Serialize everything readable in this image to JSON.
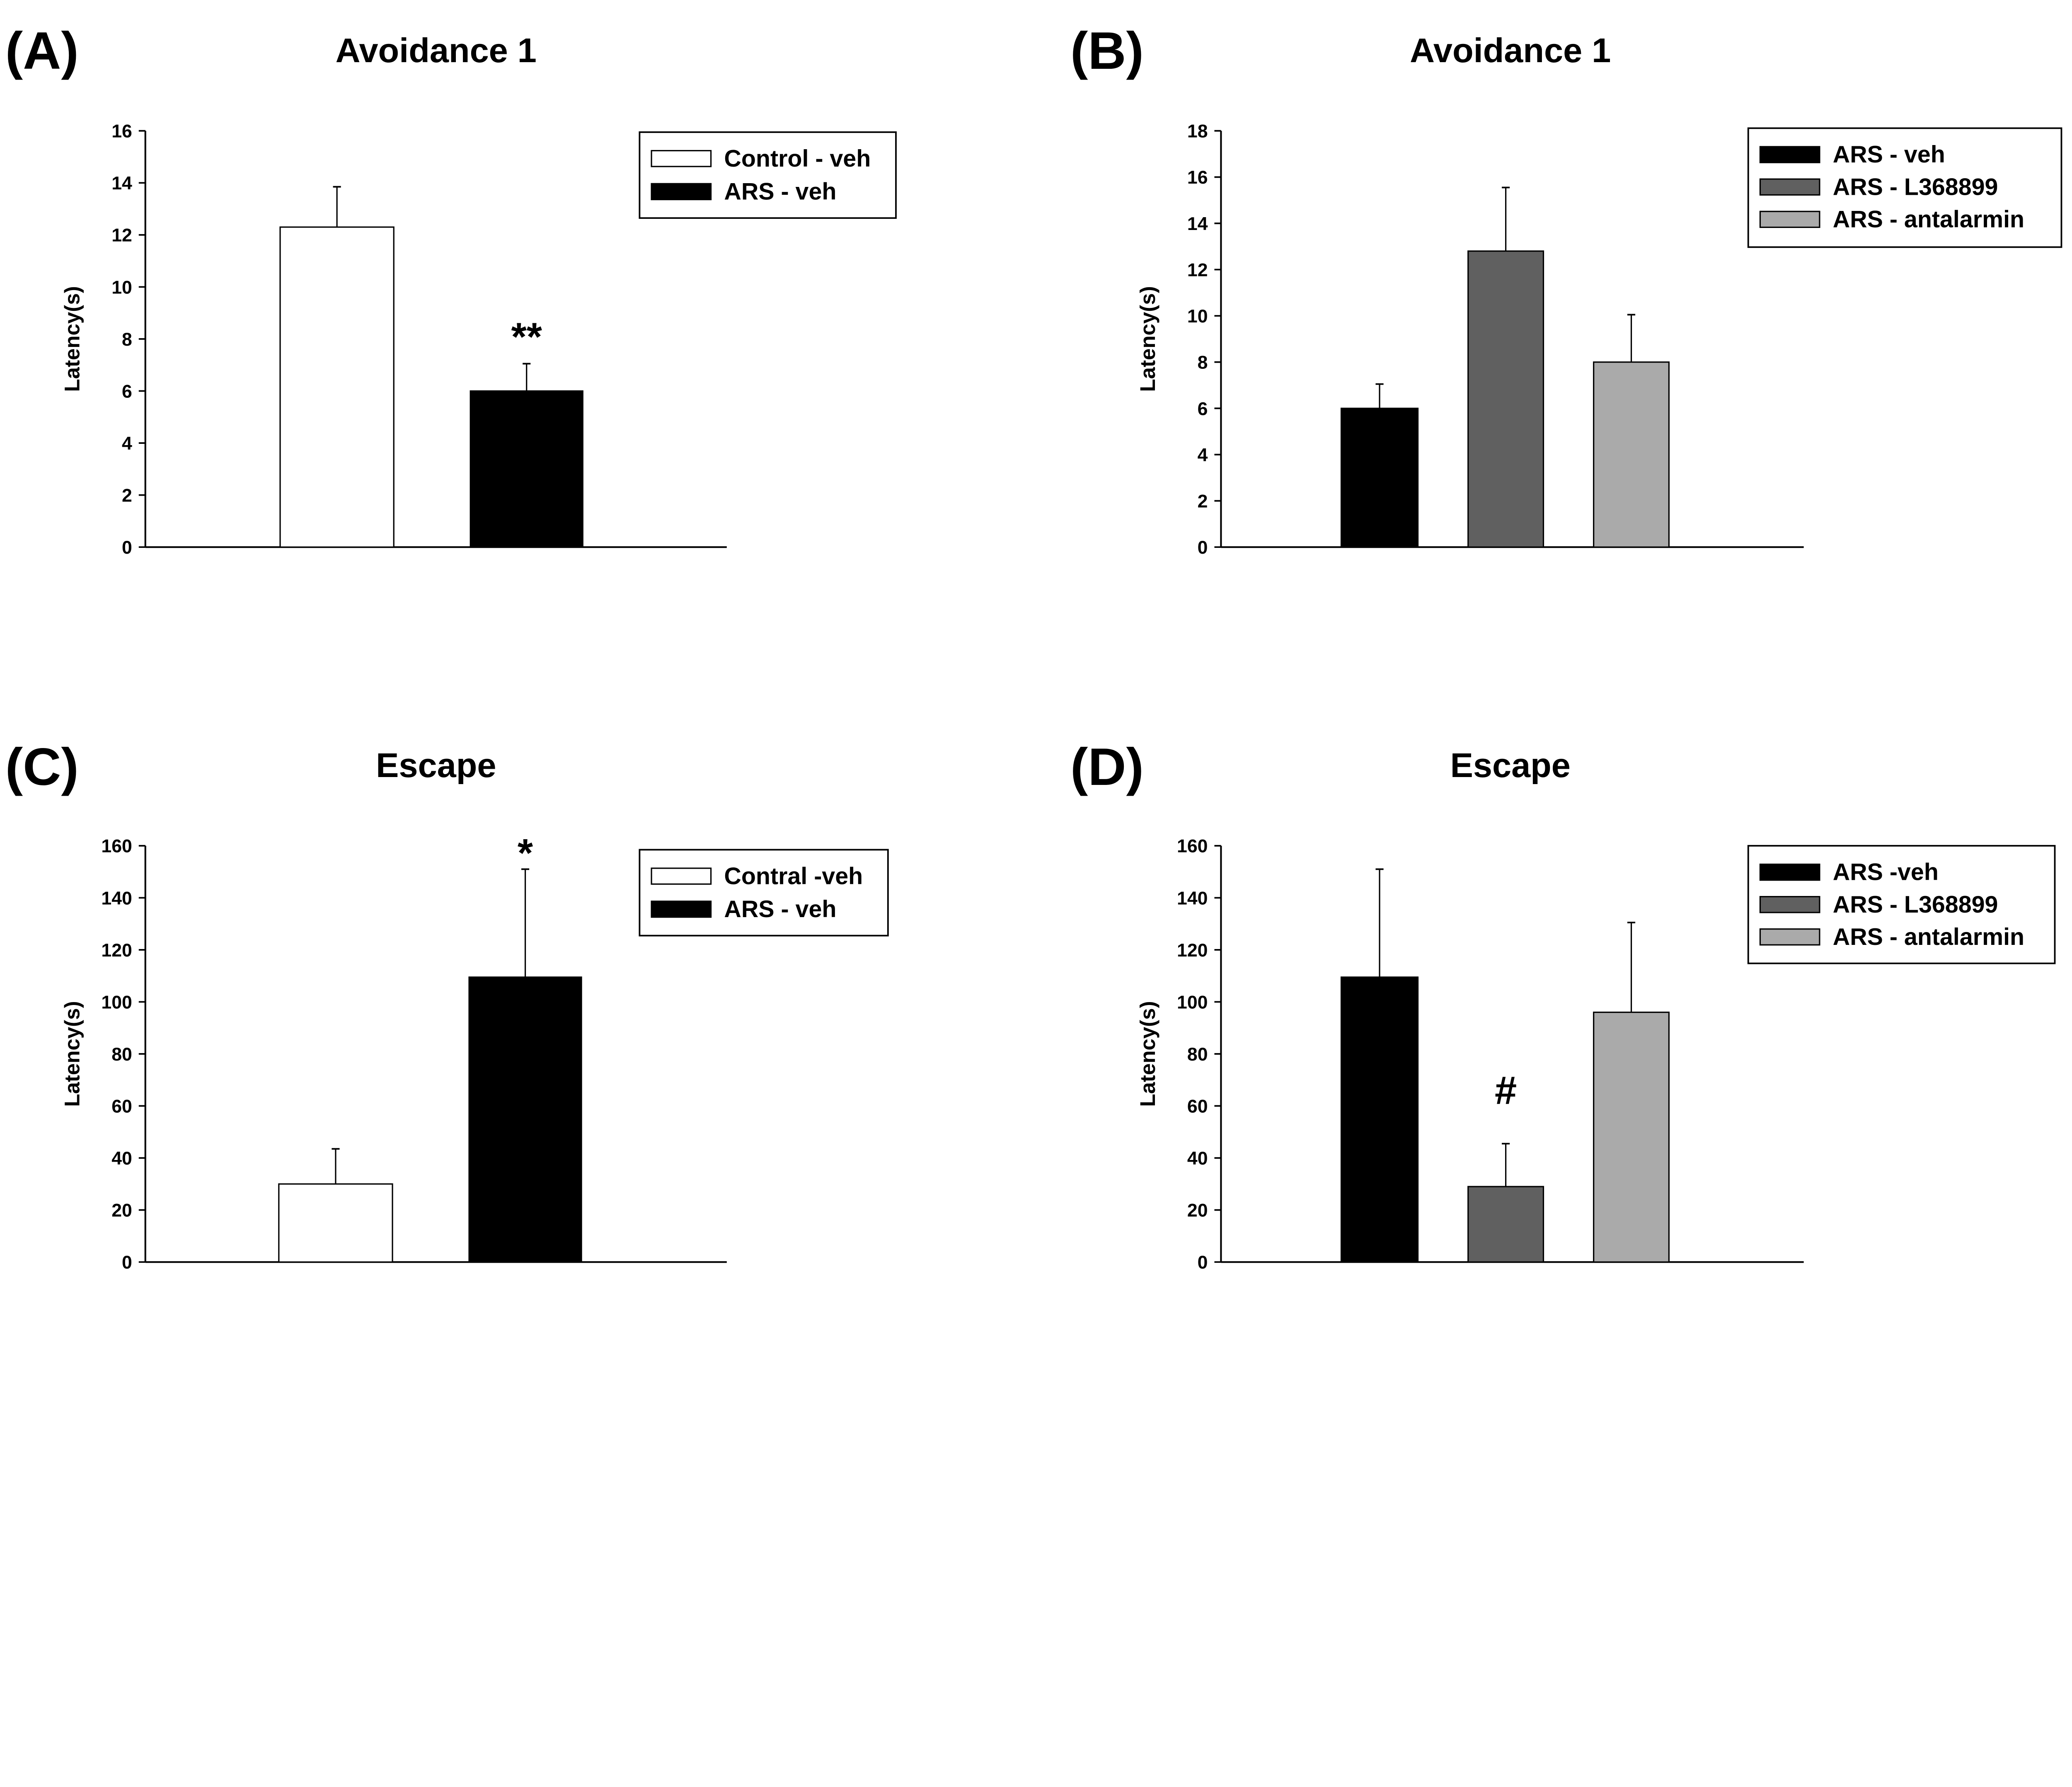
{
  "chart_data": [
    {
      "panel_label": "(A)",
      "type": "bar",
      "title": "Avoidance 1",
      "ylabel": "Latency(s)",
      "ylim": [
        0,
        16
      ],
      "yticks": [
        0,
        2,
        4,
        6,
        8,
        10,
        12,
        14,
        16
      ],
      "legend_position": "top-right",
      "series": [
        {
          "name": "Control - veh",
          "value": 12.3,
          "error": 1.55,
          "color": "#ffffff",
          "annotation": ""
        },
        {
          "name": "ARS - veh",
          "value": 6.0,
          "error": 1.05,
          "color": "#000000",
          "annotation": "**"
        }
      ]
    },
    {
      "panel_label": "(B)",
      "type": "bar",
      "title": "Avoidance 1",
      "ylabel": "Latency(s)",
      "ylim": [
        0,
        18
      ],
      "yticks": [
        0,
        2,
        4,
        6,
        8,
        10,
        12,
        14,
        16,
        18
      ],
      "legend_position": "top-right",
      "series": [
        {
          "name": "ARS - veh",
          "value": 6.0,
          "error": 1.05,
          "color": "#000000",
          "annotation": ""
        },
        {
          "name": "ARS - L368899",
          "value": 12.8,
          "error": 2.75,
          "color": "#606060",
          "annotation": ""
        },
        {
          "name": "ARS - antalarmin",
          "value": 8.0,
          "error": 2.05,
          "color": "#aaaaaa",
          "annotation": ""
        }
      ]
    },
    {
      "panel_label": "(C)",
      "type": "bar",
      "title": "Escape",
      "ylabel": "Latency(s)",
      "ylim": [
        0,
        160
      ],
      "yticks": [
        0,
        20,
        40,
        60,
        80,
        100,
        120,
        140,
        160
      ],
      "legend_position": "top-right",
      "series": [
        {
          "name": "Contral -veh",
          "value": 30,
          "error": 13.5,
          "color": "#ffffff",
          "annotation": ""
        },
        {
          "name": "ARS - veh",
          "value": 109.5,
          "error": 41.5,
          "color": "#000000",
          "annotation": "*"
        }
      ]
    },
    {
      "panel_label": "(D)",
      "type": "bar",
      "title": "Escape",
      "ylabel": "Latency(s)",
      "ylim": [
        0,
        160
      ],
      "yticks": [
        0,
        20,
        40,
        60,
        80,
        100,
        120,
        140,
        160
      ],
      "legend_position": "top-right",
      "series": [
        {
          "name": "ARS -veh",
          "value": 109.5,
          "error": 41.5,
          "color": "#000000",
          "annotation": ""
        },
        {
          "name": "ARS - L368899",
          "value": 29,
          "error": 16.5,
          "color": "#606060",
          "annotation": "#"
        },
        {
          "name": "ARS - antalarmin",
          "value": 96,
          "error": 34.5,
          "color": "#aaaaaa",
          "annotation": ""
        }
      ]
    }
  ]
}
